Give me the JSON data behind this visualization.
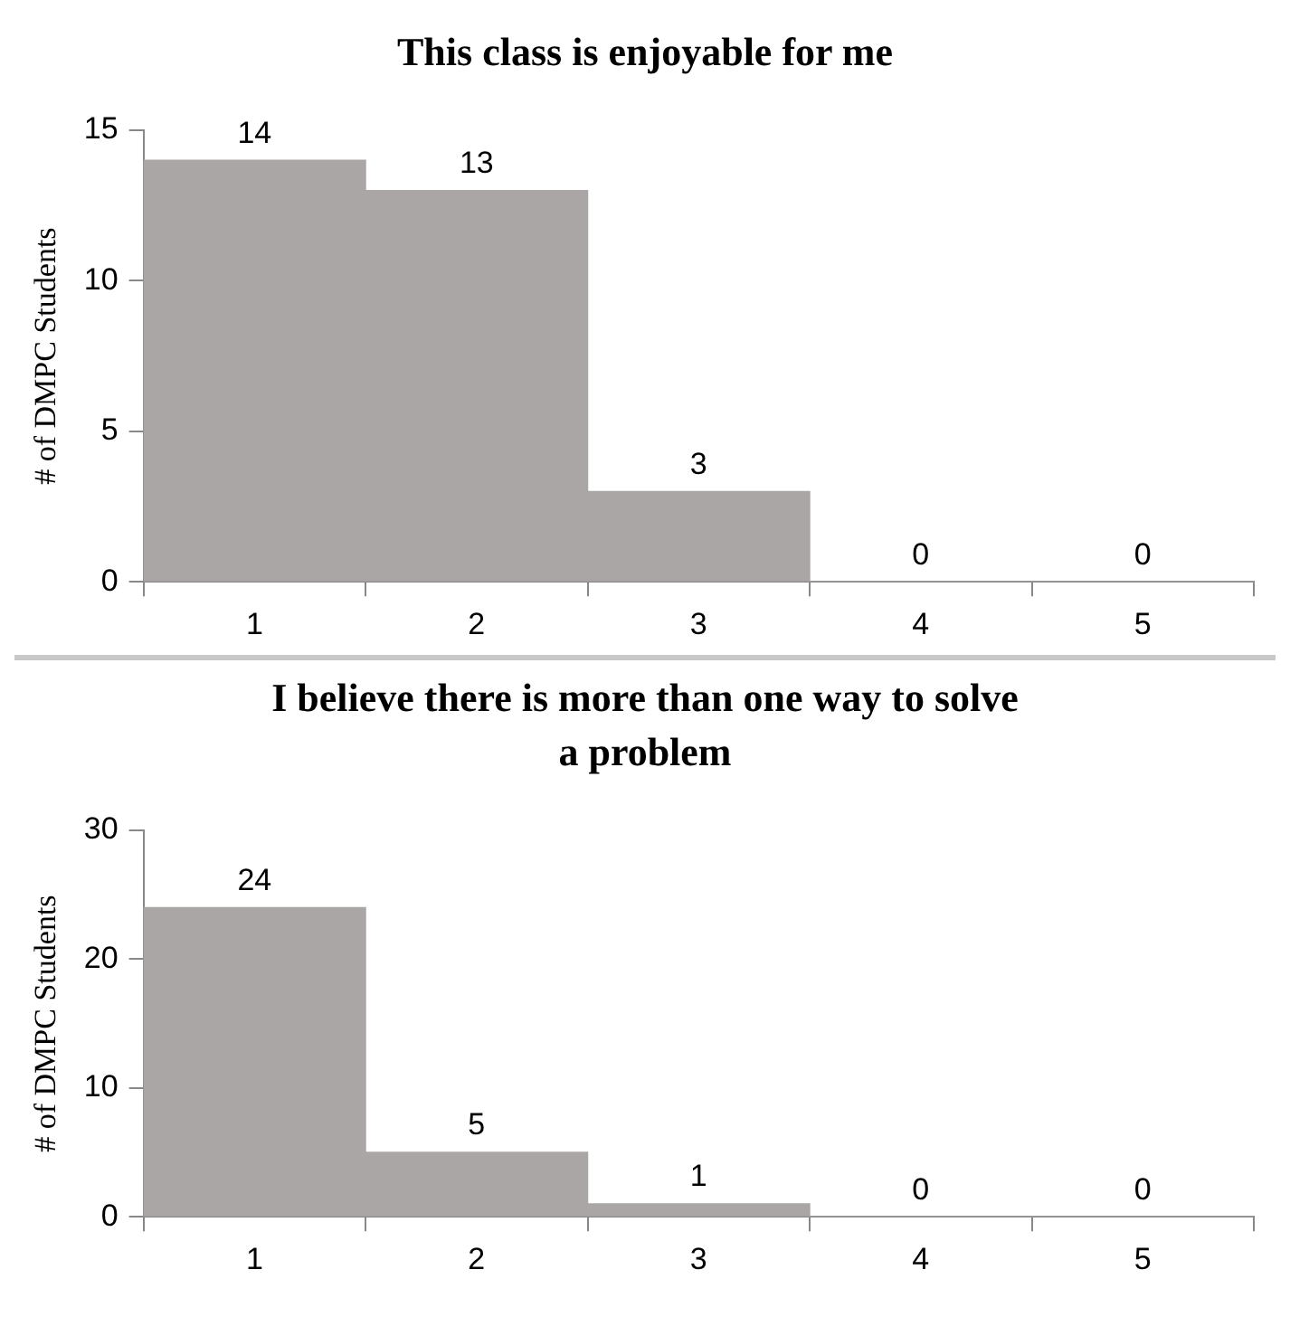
{
  "chart_data": [
    {
      "type": "bar",
      "title": "This class is enjoyable for me",
      "ylabel": "# of DMPC Students",
      "categories": [
        "1",
        "2",
        "3",
        "4",
        "5"
      ],
      "values": [
        14,
        13,
        3,
        0,
        0
      ],
      "color": "#aaa6a6",
      "ylim": [
        0,
        15
      ],
      "yticks": [
        0,
        5,
        10,
        15
      ],
      "data_labels": true,
      "grid": false,
      "legend": false
    },
    {
      "type": "bar",
      "title": "I believe there is more than one way to solve a problem",
      "ylabel": "# of DMPC Students",
      "categories": [
        "1",
        "2",
        "3",
        "4",
        "5"
      ],
      "values": [
        24,
        5,
        1,
        0,
        0
      ],
      "color": "#aaa6a6",
      "ylim": [
        0,
        30
      ],
      "yticks": [
        0,
        10,
        20,
        30
      ],
      "data_labels": true,
      "grid": false,
      "legend": false
    }
  ]
}
